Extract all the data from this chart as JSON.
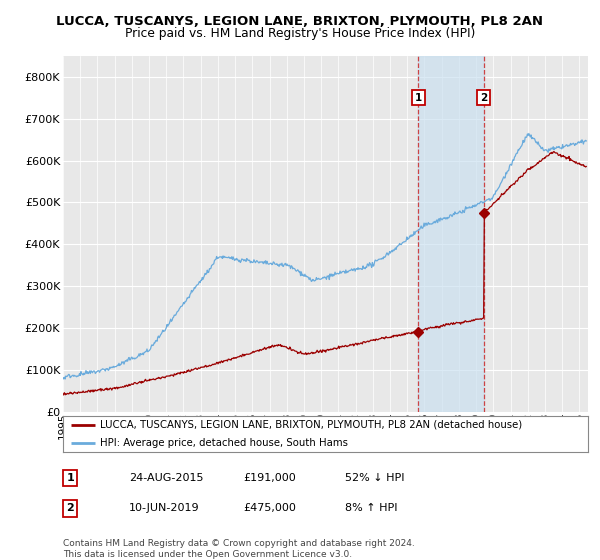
{
  "title": "LUCCA, TUSCANYS, LEGION LANE, BRIXTON, PLYMOUTH, PL8 2AN",
  "subtitle": "Price paid vs. HM Land Registry's House Price Index (HPI)",
  "ylabel_ticks": [
    "£0",
    "£100K",
    "£200K",
    "£300K",
    "£400K",
    "£500K",
    "£600K",
    "£700K",
    "£800K"
  ],
  "ytick_values": [
    0,
    100000,
    200000,
    300000,
    400000,
    500000,
    600000,
    700000,
    800000
  ],
  "ylim": [
    0,
    850000
  ],
  "xlim_start": 1995.0,
  "xlim_end": 2025.5,
  "hpi_color": "#6aabdc",
  "price_color": "#9b0000",
  "bg_color": "#e8e8e8",
  "marker1_x": 2015.65,
  "marker1_y": 191000,
  "marker2_x": 2019.44,
  "marker2_y": 475000,
  "legend_label1": "LUCCA, TUSCANYS, LEGION LANE, BRIXTON, PLYMOUTH, PL8 2AN (detached house)",
  "legend_label2": "HPI: Average price, detached house, South Hams",
  "table_row1_num": "1",
  "table_row1_date": "24-AUG-2015",
  "table_row1_price": "£191,000",
  "table_row1_hpi": "52% ↓ HPI",
  "table_row2_num": "2",
  "table_row2_date": "10-JUN-2019",
  "table_row2_price": "£475,000",
  "table_row2_hpi": "8% ↑ HPI",
  "footnote": "Contains HM Land Registry data © Crown copyright and database right 2024.\nThis data is licensed under the Open Government Licence v3.0.",
  "title_fontsize": 9.5,
  "subtitle_fontsize": 9,
  "background_color": "#ffffff"
}
